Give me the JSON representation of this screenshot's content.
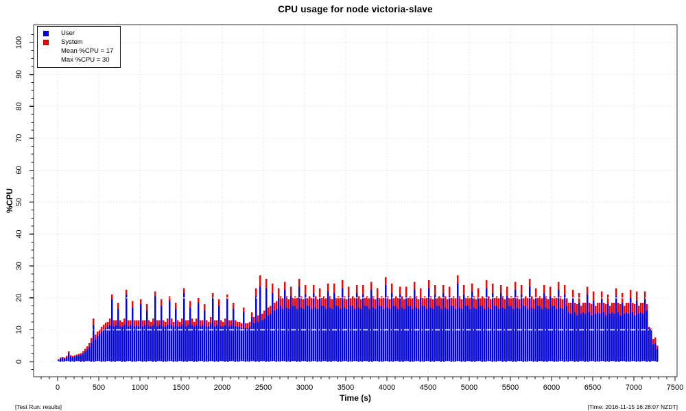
{
  "title": "CPU usage for node victoria-slave",
  "footer": {
    "left": "[Test Run: results]",
    "right": "[Time: 2016-11-15 16:28:07 NZDT]"
  },
  "legend": {
    "items": [
      {
        "label": "User",
        "color": "#0000ff"
      },
      {
        "label": "System",
        "color": "#ff0000"
      }
    ],
    "mean_text": "Mean %CPU = 17",
    "max_text": "Max %CPU = 30"
  },
  "chart_data": {
    "type": "bar",
    "stacked": true,
    "title": "CPU usage for node victoria-slave",
    "xlabel": "Time (s)",
    "ylabel": "%CPU",
    "xlim": [
      -300,
      7550
    ],
    "ylim": [
      -4.5,
      105.5
    ],
    "x_ticks": [
      0,
      500,
      1000,
      1500,
      2000,
      2500,
      3000,
      3500,
      4000,
      4500,
      5000,
      5500,
      6000,
      6500,
      7000,
      7500
    ],
    "x_minor_step": 100,
    "y_ticks": [
      0,
      10,
      20,
      30,
      40,
      50,
      60,
      70,
      80,
      90,
      100
    ],
    "y_minor_step": 2.5,
    "grid": true,
    "legend_position": "top-left",
    "mean_cpu": 17,
    "max_cpu": 30,
    "t_start": 0,
    "t_step": 25,
    "series": [
      {
        "name": "User",
        "color": "#0000ff",
        "values": [
          0.6,
          1,
          1.2,
          1,
          1.4,
          2.6,
          1.6,
          1.4,
          1.6,
          1.8,
          2,
          2.2,
          2.6,
          3.2,
          3.8,
          4.6,
          6,
          11.5,
          7,
          8,
          8.8,
          9.4,
          10,
          10.6,
          11,
          11.5,
          19.5,
          11,
          11.5,
          16.5,
          11,
          11,
          11.5,
          21,
          11,
          11.5,
          17,
          11,
          11.5,
          11,
          18,
          11,
          11.5,
          16,
          11,
          11,
          11.5,
          20.5,
          11,
          11.5,
          17.5,
          11,
          11,
          11.5,
          19,
          11.5,
          11,
          16.5,
          11,
          11,
          11.5,
          21.5,
          11,
          11.5,
          17,
          11.5,
          11,
          11.5,
          18.5,
          11,
          11.5,
          16,
          11,
          11,
          12,
          20,
          11,
          11.5,
          17.5,
          11,
          11,
          11.5,
          19.5,
          11,
          11.5,
          16.5,
          11,
          11,
          11,
          10.5,
          15.5,
          10.5,
          10.5,
          11,
          14,
          12,
          20.5,
          12.5,
          23.5,
          13,
          13.5,
          23,
          14.5,
          15,
          21.5,
          16,
          16.5,
          20,
          17.5,
          16.5,
          22.5,
          17,
          16.5,
          20.5,
          17.5,
          17.5,
          16.5,
          23.5,
          17,
          16.5,
          21,
          17.5,
          17.5,
          16.5,
          21.5,
          17,
          16.5,
          20,
          17.5,
          17.5,
          16.5,
          22,
          17,
          16.5,
          21.5,
          17.5,
          17.5,
          16.5,
          23,
          17,
          16.5,
          20.5,
          17.5,
          17.5,
          16.5,
          21.5,
          17,
          16.5,
          21,
          17.5,
          17.5,
          16.5,
          22.5,
          17,
          16.5,
          20,
          17.5,
          17.5,
          16.5,
          24,
          17,
          16.5,
          21.5,
          17.5,
          17.5,
          16.5,
          21,
          17,
          16.5,
          20.5,
          17.5,
          17.5,
          16.5,
          22.5,
          17,
          16.5,
          20,
          17.5,
          17.5,
          16.5,
          23,
          17,
          16.5,
          21,
          17.5,
          17.5,
          16.5,
          21.5,
          17,
          16.5,
          20.5,
          17.5,
          17.5,
          16.5,
          24.5,
          17,
          16.5,
          21,
          17.5,
          17.5,
          16.5,
          22,
          17,
          16.5,
          20,
          17.5,
          17.5,
          16.5,
          23,
          17,
          16.5,
          21.5,
          17.5,
          17.5,
          16.5,
          21.5,
          17,
          16.5,
          20.5,
          17.5,
          17.5,
          16.5,
          22.5,
          17,
          16.5,
          21,
          17.5,
          17.5,
          16.5,
          23.5,
          17,
          16.5,
          20,
          17.5,
          17.5,
          16.5,
          21.5,
          17,
          16.5,
          20.5,
          17.5,
          17.5,
          16.5,
          22.5,
          17,
          16.5,
          21,
          17.5,
          15.5,
          15,
          20,
          15.5,
          14.5,
          18.5,
          15,
          15.5,
          15,
          21,
          15.5,
          14.5,
          19,
          15,
          15.5,
          15,
          19.5,
          15.5,
          14.5,
          18,
          15,
          15.5,
          15,
          20.5,
          15.5,
          14.5,
          18.5,
          15,
          15.5,
          15,
          20,
          15.5,
          14.5,
          19,
          15,
          15.5,
          15,
          19.5,
          16,
          10.5,
          10,
          5.5,
          5.8,
          4
        ]
      },
      {
        "name": "System",
        "color": "#ff0000",
        "values": [
          0.2,
          0.3,
          0.3,
          0.3,
          0.4,
          0.6,
          0.4,
          0.4,
          0.4,
          0.5,
          0.5,
          0.5,
          0.7,
          0.9,
          1,
          1.2,
          1.4,
          2,
          1.5,
          1.4,
          1.4,
          1.5,
          1.6,
          1.6,
          1.5,
          2,
          1.5,
          2,
          1.5,
          2,
          2,
          1.5,
          2,
          1.5,
          2,
          1.5,
          2,
          2,
          1.5,
          2,
          1.5,
          2,
          1.5,
          2,
          2,
          1.5,
          2,
          1.5,
          2,
          1.5,
          2,
          2,
          1.5,
          2,
          1.5,
          2,
          1.5,
          2,
          2,
          1.5,
          2,
          1.5,
          2,
          1.5,
          2,
          2,
          1.5,
          2,
          1.5,
          2,
          1.5,
          2,
          2,
          1.5,
          2,
          1.5,
          2,
          1.5,
          2,
          2,
          1.5,
          2,
          1.5,
          2,
          1.5,
          2,
          2,
          1.5,
          1.5,
          1.5,
          1.5,
          1.5,
          1.5,
          1.5,
          1.5,
          2,
          2.5,
          2,
          3.5,
          2,
          2.5,
          3,
          2.5,
          2.5,
          3,
          2.5,
          2.5,
          3,
          3,
          3.5,
          2.5,
          3.5,
          3,
          3,
          2.5,
          3,
          3.5,
          2.5,
          3.5,
          3,
          3,
          2.5,
          3,
          3.5,
          2.5,
          3.5,
          3,
          3,
          2.5,
          3,
          3.5,
          2.5,
          3.5,
          3,
          3,
          2.5,
          3,
          3.5,
          2.5,
          3.5,
          3,
          3,
          2.5,
          3,
          3.5,
          2.5,
          3.5,
          3,
          3,
          2.5,
          3,
          3.5,
          2.5,
          3.5,
          3,
          3,
          2.5,
          3,
          3.5,
          2.5,
          3.5,
          3,
          3,
          2.5,
          3,
          3.5,
          2.5,
          3.5,
          3,
          3,
          2.5,
          3,
          3.5,
          2.5,
          3.5,
          3,
          3,
          2.5,
          3,
          3.5,
          2.5,
          3.5,
          3,
          3,
          2.5,
          3,
          3.5,
          2.5,
          3.5,
          3,
          3,
          2.5,
          3,
          3.5,
          2.5,
          3.5,
          3,
          3,
          2.5,
          3,
          3.5,
          2.5,
          3.5,
          3,
          3,
          2.5,
          3,
          3.5,
          2.5,
          3.5,
          3,
          3,
          2.5,
          3,
          3.5,
          2.5,
          3.5,
          3,
          3,
          2.5,
          3,
          3.5,
          2.5,
          3.5,
          3,
          3,
          2.5,
          3,
          3.5,
          2.5,
          3.5,
          3,
          3,
          2.5,
          3,
          3.5,
          2.5,
          3.5,
          3,
          3,
          2.5,
          3,
          3.5,
          2.5,
          3.5,
          3,
          3,
          2.5,
          3,
          3.5,
          2.5,
          3,
          3.5,
          3,
          2.5,
          3,
          3.5,
          2.5,
          3,
          3.5,
          3,
          2.5,
          3,
          3.5,
          2.5,
          3,
          3.5,
          3,
          2.5,
          3,
          3.5,
          2.5,
          3,
          3.5,
          3,
          2.5,
          3,
          3.5,
          2.5,
          3,
          3.5,
          3,
          2.5,
          3,
          3.5,
          2.5,
          2,
          0.4,
          0.4,
          1.6,
          1.8,
          1
        ]
      }
    ]
  },
  "colors": {
    "user": "#0000ff",
    "system": "#ff0000",
    "grid": "#e2e2e2",
    "axis": "#333333"
  }
}
